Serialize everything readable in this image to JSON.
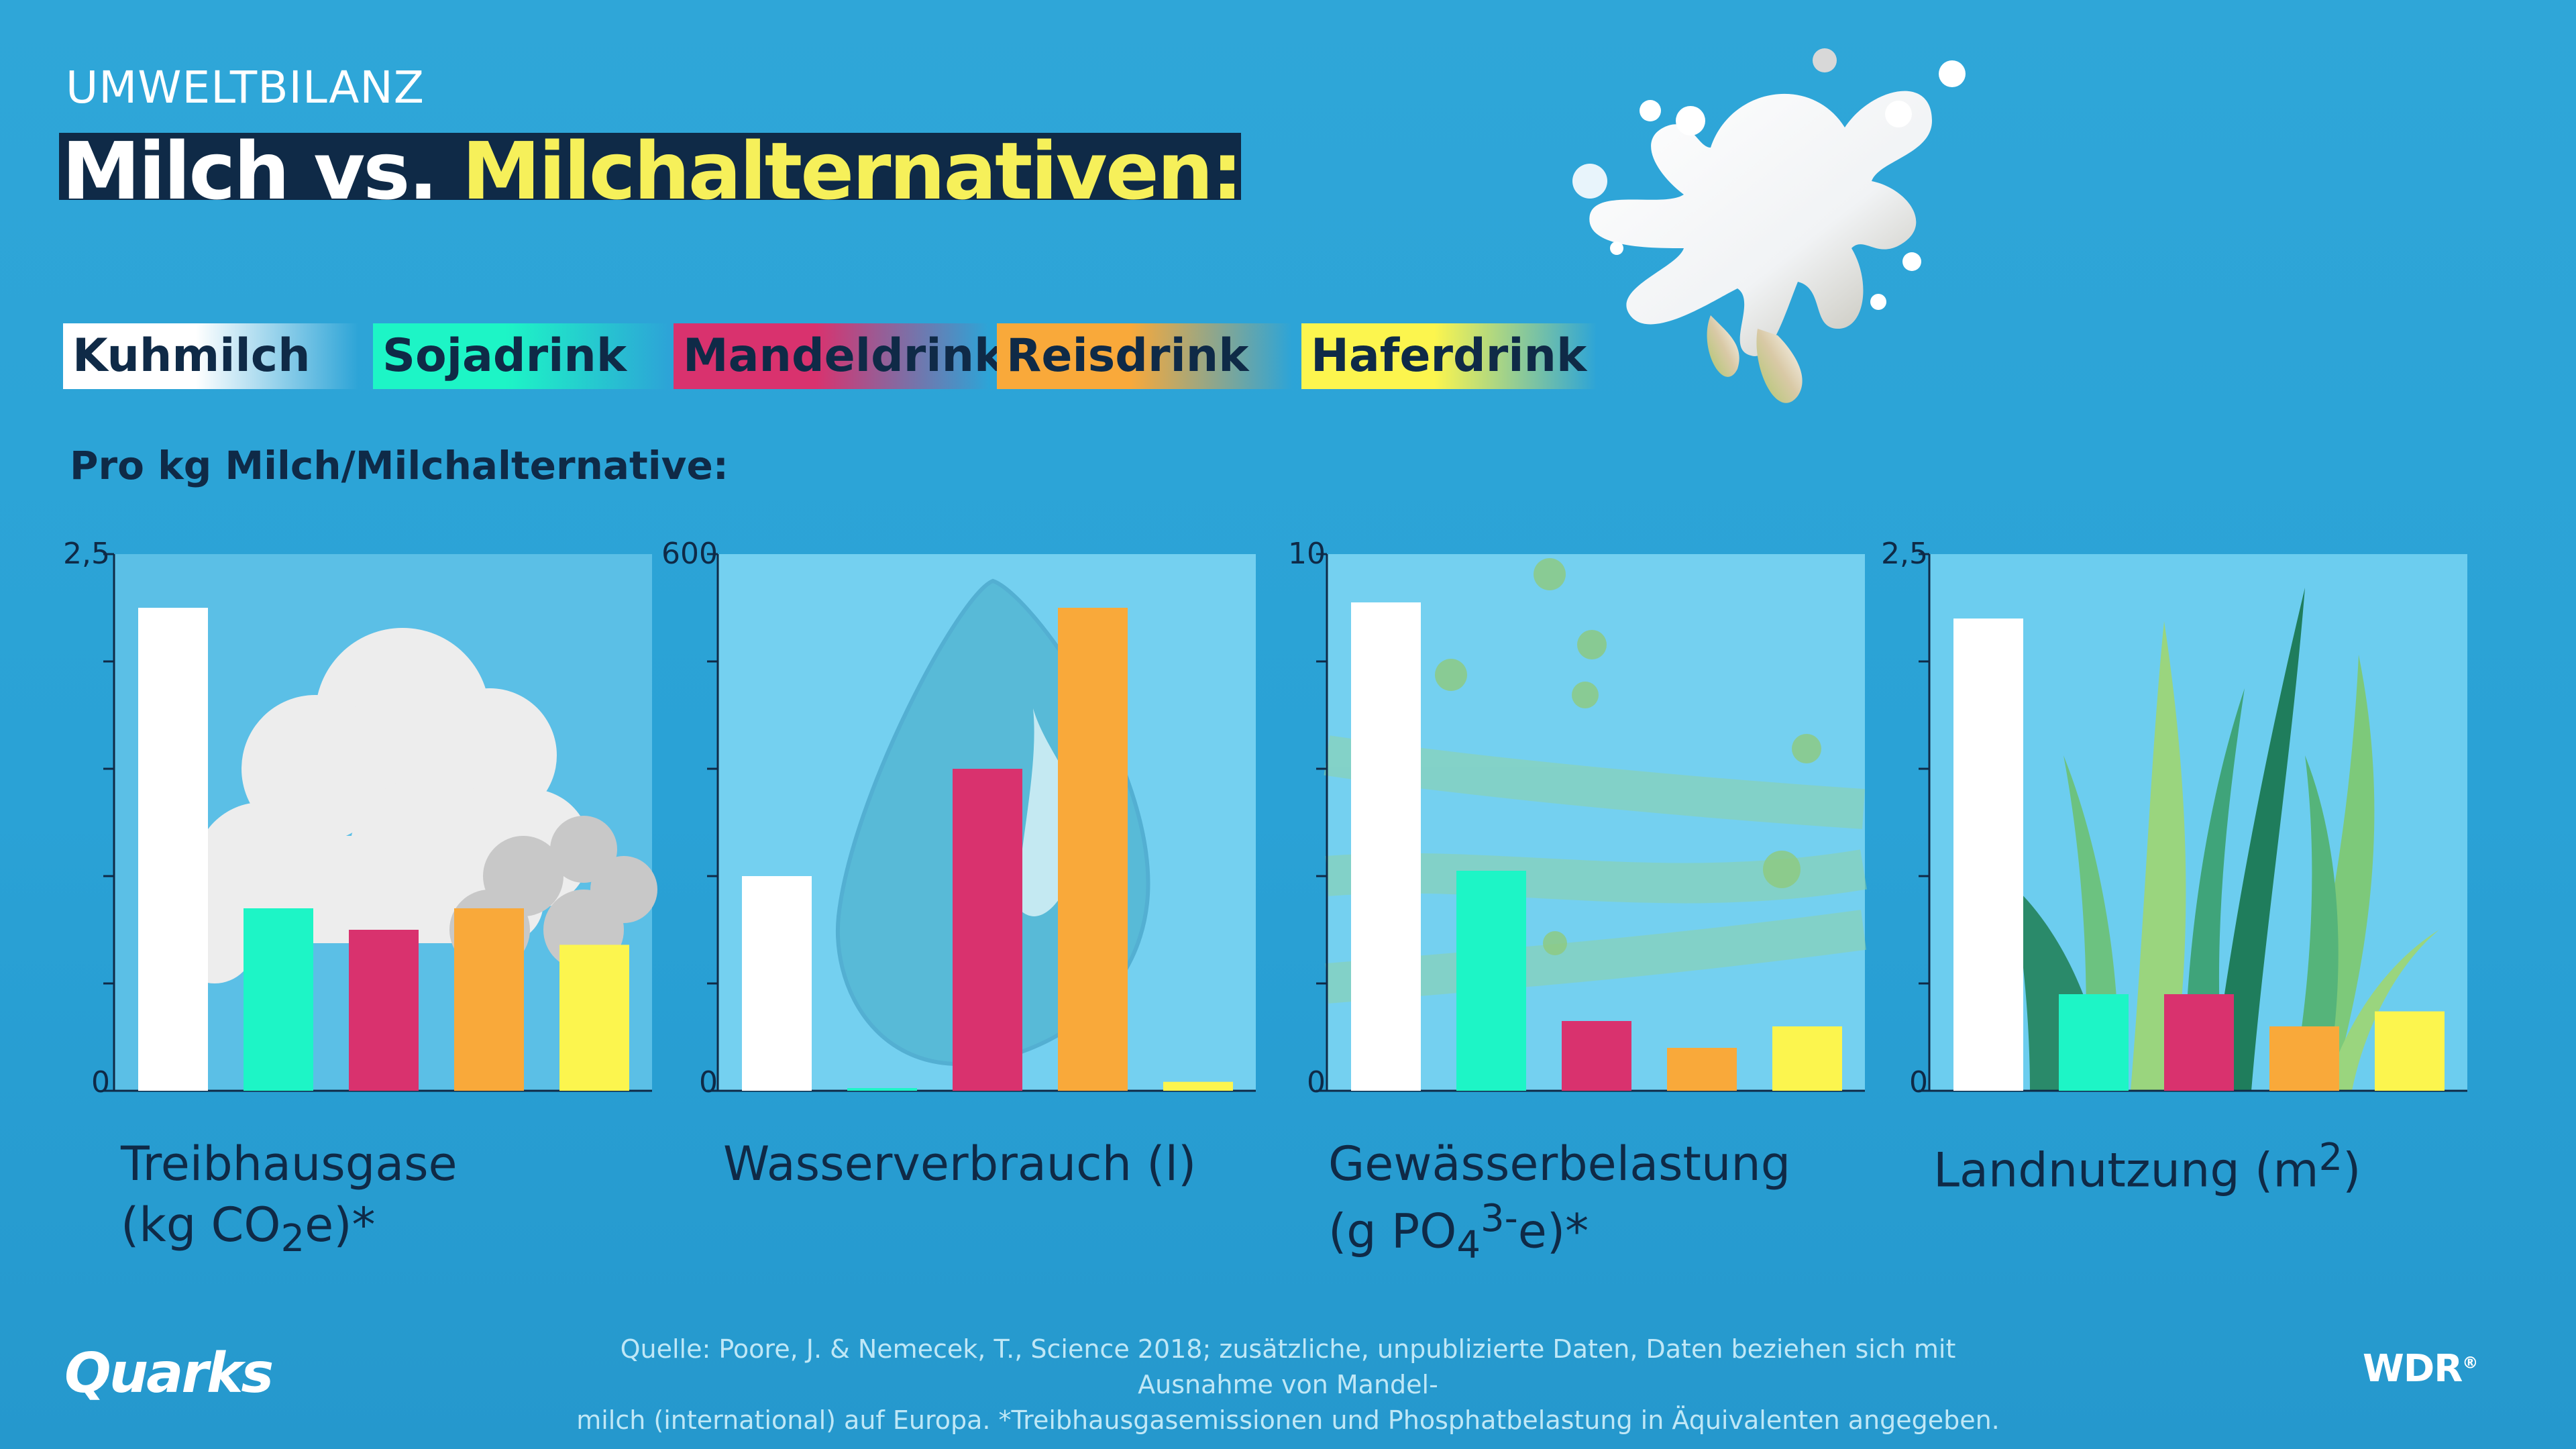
{
  "header": {
    "kicker": "UMWELTBILANZ",
    "title_part1": "Milch vs.",
    "title_part2": "Milchalternativen:"
  },
  "legend": [
    {
      "label": "Kuhmilch",
      "color": "#ffffff"
    },
    {
      "label": "Sojadrink",
      "color": "#1df5c6"
    },
    {
      "label": "Mandeldrink",
      "color": "#d9326e"
    },
    {
      "label": "Reisdrink",
      "color": "#f9a93a"
    },
    {
      "label": "Haferdrink",
      "color": "#fcf54e"
    }
  ],
  "subheading": "Pro kg Milch/Milchalternative:",
  "chart_data": [
    {
      "type": "bar",
      "categories": [
        "Kuhmilch",
        "Sojadrink",
        "Mandeldrink",
        "Reisdrink",
        "Haferdrink"
      ],
      "values": [
        2.25,
        0.85,
        0.75,
        0.85,
        0.68
      ],
      "ylim": [
        0,
        2.5
      ],
      "tick_labels": {
        "min": "0",
        "max": "2,5"
      },
      "title": "Treibhausgase",
      "title_line2_pre": "(kg CO",
      "title_line2_sub": "2",
      "title_line2_post": "e)*"
    },
    {
      "type": "bar",
      "categories": [
        "Kuhmilch",
        "Sojadrink",
        "Mandeldrink",
        "Reisdrink",
        "Haferdrink"
      ],
      "values": [
        240,
        2,
        360,
        540,
        10
      ],
      "ylim": [
        0,
        600
      ],
      "tick_labels": {
        "min": "0",
        "max": "600"
      },
      "title": "Wasserverbrauch (l)"
    },
    {
      "type": "bar",
      "categories": [
        "Kuhmilch",
        "Sojadrink",
        "Mandeldrink",
        "Reisdrink",
        "Haferdrink"
      ],
      "values": [
        9.1,
        4.1,
        1.3,
        0.8,
        1.2
      ],
      "ylim": [
        0,
        10
      ],
      "tick_labels": {
        "min": "0",
        "max": "10"
      },
      "title": "Gewässerbelastung",
      "title_line2_pre": "(g PO",
      "title_line2_sub": "4",
      "title_line2_sup": "3-",
      "title_line2_post": "e)*"
    },
    {
      "type": "bar",
      "categories": [
        "Kuhmilch",
        "Sojadrink",
        "Mandeldrink",
        "Reisdrink",
        "Haferdrink"
      ],
      "values": [
        2.2,
        0.45,
        0.45,
        0.3,
        0.37
      ],
      "ylim": [
        0,
        2.5
      ],
      "tick_labels": {
        "min": "0",
        "max": "2,5"
      },
      "title_pre": "Landnutzung (m",
      "title_sup": "2",
      "title_post": ")"
    }
  ],
  "footnote": {
    "line1": "Quelle: Poore, J. & Nemecek, T., Science 2018; zusätzliche, unpublizierte Daten, Daten beziehen sich mit Ausnahme von Mandel-",
    "line2": "milch (international) auf Europa. *Treibhausgasemissionen und Phosphatbelastung in Äquivalenten angegeben."
  },
  "logos": {
    "left": "Quarks",
    "right": "WDR",
    "right_mark": "®"
  },
  "colors": {
    "panel": "#74d0f0",
    "dark": "#0f2a47"
  }
}
